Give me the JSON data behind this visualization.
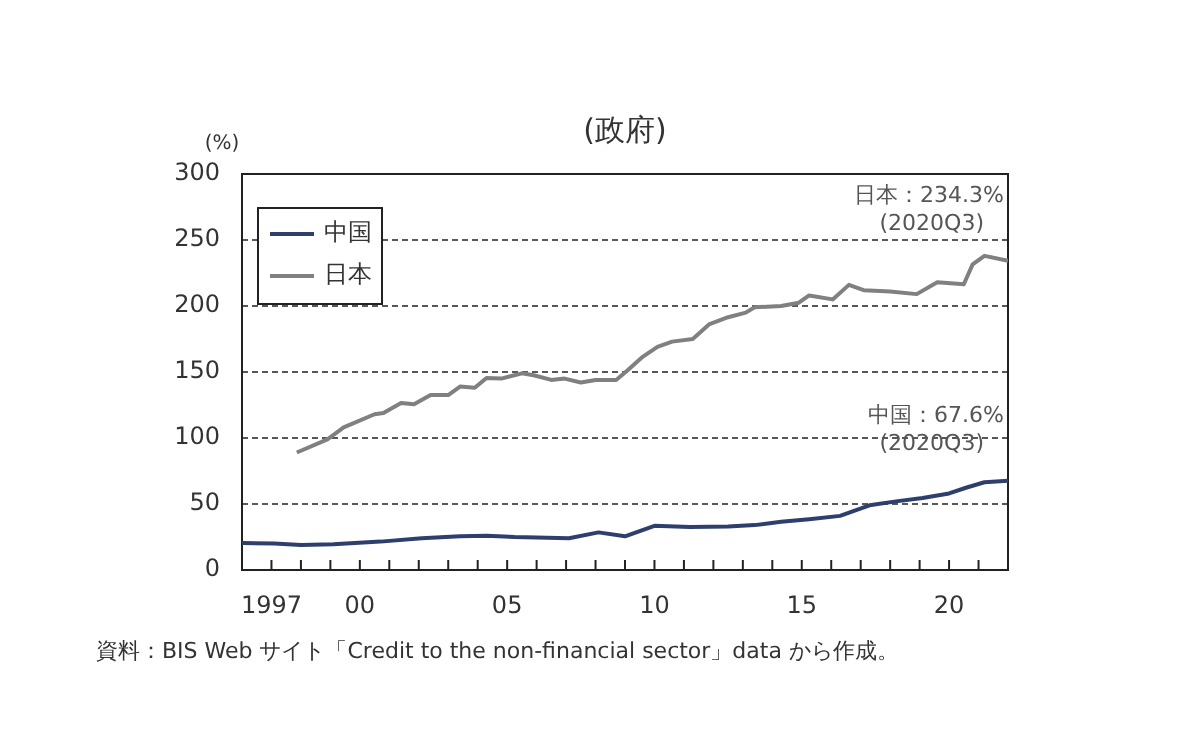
{
  "chart_data": {
    "type": "line",
    "title": "(政府)",
    "ylabel": "(%)",
    "xlim": [
      1996,
      2022
    ],
    "ylim": [
      0,
      300
    ],
    "yticks": [
      0,
      50,
      100,
      150,
      200,
      250,
      300
    ],
    "xticks": [
      {
        "value": 1996,
        "label": null
      },
      {
        "value": 1997,
        "label": "1997"
      },
      {
        "value": 1998,
        "label": null
      },
      {
        "value": 1999,
        "label": null
      },
      {
        "value": 2000,
        "label": "00"
      },
      {
        "value": 2001,
        "label": null
      },
      {
        "value": 2002,
        "label": null
      },
      {
        "value": 2003,
        "label": null
      },
      {
        "value": 2004,
        "label": null
      },
      {
        "value": 2005,
        "label": "05"
      },
      {
        "value": 2006,
        "label": null
      },
      {
        "value": 2007,
        "label": null
      },
      {
        "value": 2008,
        "label": null
      },
      {
        "value": 2009,
        "label": null
      },
      {
        "value": 2010,
        "label": "10"
      },
      {
        "value": 2011,
        "label": null
      },
      {
        "value": 2012,
        "label": null
      },
      {
        "value": 2013,
        "label": null
      },
      {
        "value": 2014,
        "label": null
      },
      {
        "value": 2015,
        "label": "15"
      },
      {
        "value": 2016,
        "label": null
      },
      {
        "value": 2017,
        "label": null
      },
      {
        "value": 2018,
        "label": null
      },
      {
        "value": 2019,
        "label": null
      },
      {
        "value": 2020,
        "label": "20"
      },
      {
        "value": 2021,
        "label": null
      },
      {
        "value": 2022,
        "label": null
      }
    ],
    "grid": "y",
    "legend": "top left",
    "marker": "none",
    "line_style": "solid",
    "series": [
      {
        "name": "中国",
        "color": "#2e3f6e",
        "x": [
          1996.0,
          1997.1,
          1998.0,
          1999.1,
          2000.7,
          2002.1,
          2003.4,
          2004.3,
          2005.25,
          2007.1,
          2008.1,
          2009.0,
          2010.0,
          2011.2,
          2012.5,
          2013.4,
          2014.3,
          2015.25,
          2016.3,
          2017.3,
          2018.2,
          2019.1,
          2020.0,
          2020.6,
          2021.2,
          2022.0
        ],
        "values": [
          20.5,
          20,
          19,
          19.5,
          21.5,
          24,
          25.5,
          26,
          25,
          24,
          28.5,
          25.5,
          33.5,
          32.5,
          33,
          34,
          36.5,
          38.5,
          41,
          49,
          52,
          54.5,
          58,
          62.5,
          66.5,
          67.6
        ]
      },
      {
        "name": "日本",
        "color": "#808080",
        "x": [
          1997.86,
          1998.9,
          1999.45,
          2000.5,
          2000.8,
          2001.4,
          2001.84,
          2002.4,
          2003.0,
          2003.4,
          2003.9,
          2004.3,
          2004.8,
          2005.5,
          2005.9,
          2006.5,
          2006.95,
          2007.5,
          2008.0,
          2008.7,
          2009.1,
          2009.6,
          2010.1,
          2010.6,
          2011.3,
          2011.85,
          2012.5,
          2013.1,
          2013.4,
          2014.3,
          2014.9,
          2015.25,
          2016.05,
          2016.6,
          2017.1,
          2018.0,
          2018.9,
          2019.6,
          2020.5,
          2020.8,
          2021.2,
          2022.0
        ],
        "values": [
          89,
          99,
          108,
          118,
          119,
          126.5,
          125.5,
          132.5,
          132.5,
          139,
          138,
          145.5,
          145,
          149,
          147.5,
          144,
          145,
          142,
          144,
          144,
          151.5,
          161.5,
          169,
          173,
          175,
          186,
          191.5,
          195,
          199,
          200,
          202.5,
          208,
          205,
          216,
          212,
          211,
          209,
          218,
          216.5,
          231.5,
          238,
          234.3
        ]
      }
    ],
    "annotations": [
      {
        "text": "日本：234.3%\n(2020Q3)",
        "x": 2022,
        "y": 234.3
      },
      {
        "text": "中国：67.6%\n(2020Q3)",
        "x": 2022,
        "y": 67.6
      },
      "資料：BIS Web サイト「Credit to the non-financial sector」data から作成。"
    ]
  }
}
